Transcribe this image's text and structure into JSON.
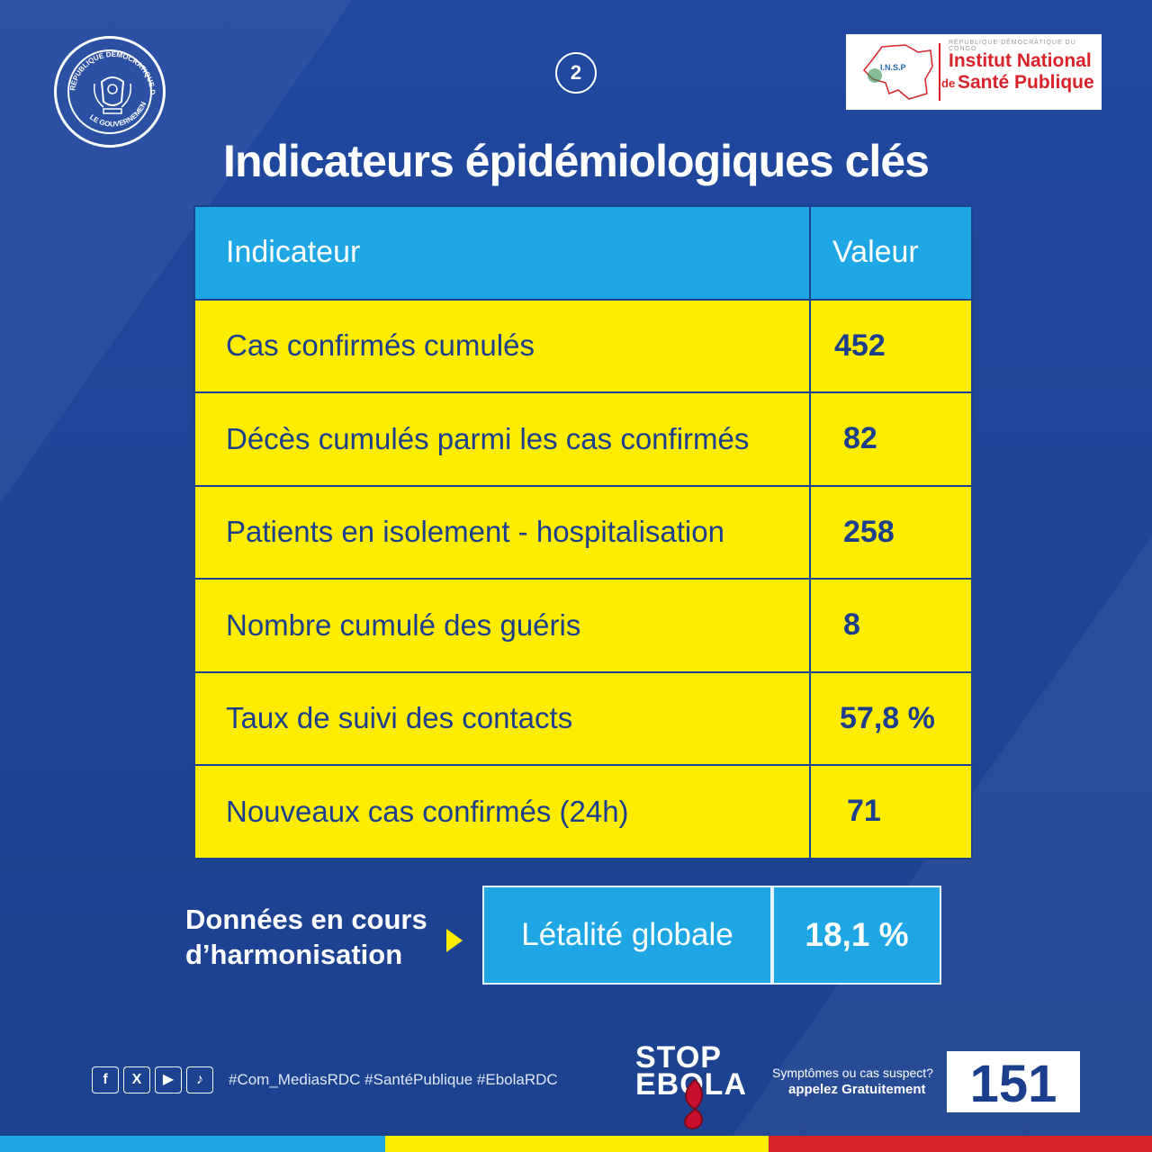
{
  "header": {
    "page_number": "2",
    "seal_text_top": "RÉPUBLIQUE DÉMOCRATIQUE DU CONGO",
    "seal_text_bottom": "LE GOUVERNEMENT",
    "insp_small": "RÉPUBLIQUE DÉMOCRATIQUE DU CONGO",
    "insp_line1": "Institut National",
    "insp_de": "de",
    "insp_line2": "Santé Publique",
    "insp_abbr": "I.N.S.P"
  },
  "title": "Indicateurs épidémiologiques clés",
  "table": {
    "headers": [
      "Indicateur",
      "Valeur"
    ],
    "rows": [
      {
        "label": "Cas confirmés cumulés",
        "value": "452"
      },
      {
        "label": "Décès cumulés parmi les cas confirmés",
        "value": "82"
      },
      {
        "label": "Patients en isolement - hospitalisation",
        "value": "258"
      },
      {
        "label": "Nombre cumulé des guéris",
        "value": "8"
      },
      {
        "label": "Taux de suivi des contacts",
        "value": "57,8 %"
      },
      {
        "label": "Nouveaux cas confirmés (24h)",
        "value": "71"
      }
    ]
  },
  "summary": {
    "note_line1": "Données en cours",
    "note_line2": "d’harmonisation",
    "label": "Létalité globale",
    "value": "18,1 %"
  },
  "footer": {
    "socials": [
      "facebook-icon",
      "x-icon",
      "youtube-icon",
      "tiktok-icon"
    ],
    "social_glyphs": [
      "f",
      "X",
      "▶",
      "♪"
    ],
    "hashtags": "#Com_MediasRDC #SantéPublique #EbolaRDC",
    "stop_line1": "STOP",
    "stop_line2": "EBOLA",
    "help_line1": "Symptômes ou cas suspect?",
    "help_line2": "appelez Gratuitement",
    "hotline": "151"
  },
  "colors": {
    "background": "#1f4594",
    "header_cell": "#1ea7e4",
    "row_cell": "#ffed00",
    "value_text": "#1b3f8c",
    "accent_red": "#d8232a"
  }
}
